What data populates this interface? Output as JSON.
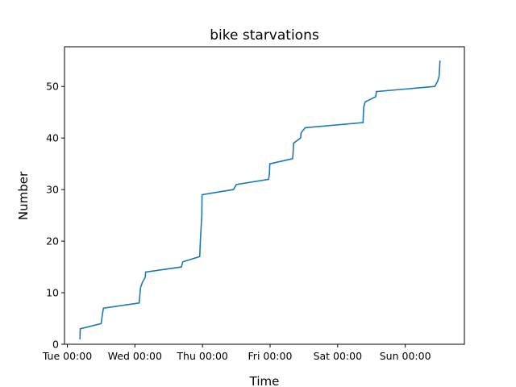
{
  "chart_data": {
    "type": "line",
    "title": "bike starvations",
    "xlabel": "Time",
    "ylabel": "Number",
    "xlim": [
      "Mon 23:00",
      "Sun 21:00"
    ],
    "ylim": [
      0,
      57.7
    ],
    "x_ticks": [
      "Tue 00:00",
      "Wed 00:00",
      "Thu 00:00",
      "Fri 00:00",
      "Sat 00:00",
      "Sun 00:00"
    ],
    "y_ticks": [
      0,
      10,
      20,
      30,
      40,
      50
    ],
    "grid": false,
    "legend": "none",
    "series": [
      {
        "color": "#1f77b4",
        "points": [
          {
            "x": "Tue 04:30",
            "y": 1
          },
          {
            "x": "Tue 04:35",
            "y": 3
          },
          {
            "x": "Tue 12:00",
            "y": 4
          },
          {
            "x": "Tue 12:30",
            "y": 6
          },
          {
            "x": "Tue 12:50",
            "y": 7
          },
          {
            "x": "Wed 01:30",
            "y": 8
          },
          {
            "x": "Wed 02:00",
            "y": 11
          },
          {
            "x": "Wed 02:40",
            "y": 12
          },
          {
            "x": "Wed 03:40",
            "y": 13
          },
          {
            "x": "Wed 03:50",
            "y": 14
          },
          {
            "x": "Wed 16:30",
            "y": 15
          },
          {
            "x": "Wed 17:00",
            "y": 16
          },
          {
            "x": "Wed 23:00",
            "y": 17
          },
          {
            "x": "Wed 23:15",
            "y": 20
          },
          {
            "x": "Wed 23:45",
            "y": 25
          },
          {
            "x": "Wed 23:50",
            "y": 29
          },
          {
            "x": "Thu 11:00",
            "y": 30
          },
          {
            "x": "Thu 12:00",
            "y": 31
          },
          {
            "x": "Thu 23:30",
            "y": 32
          },
          {
            "x": "Thu 23:45",
            "y": 33
          },
          {
            "x": "Thu 23:55",
            "y": 35
          },
          {
            "x": "Fri 08:00",
            "y": 36
          },
          {
            "x": "Fri 08:10",
            "y": 37
          },
          {
            "x": "Fri 08:20",
            "y": 39
          },
          {
            "x": "Fri 10:50",
            "y": 40
          },
          {
            "x": "Fri 11:00",
            "y": 41
          },
          {
            "x": "Fri 12:30",
            "y": 42
          },
          {
            "x": "Sat 09:00",
            "y": 43
          },
          {
            "x": "Sat 09:15",
            "y": 46
          },
          {
            "x": "Sat 09:45",
            "y": 47
          },
          {
            "x": "Sat 13:30",
            "y": 48
          },
          {
            "x": "Sat 13:45",
            "y": 49
          },
          {
            "x": "Sun 10:30",
            "y": 50
          },
          {
            "x": "Sun 11:30",
            "y": 51
          },
          {
            "x": "Sun 12:00",
            "y": 52
          },
          {
            "x": "Sun 12:15",
            "y": 54
          },
          {
            "x": "Sun 12:20",
            "y": 55
          }
        ]
      }
    ]
  }
}
